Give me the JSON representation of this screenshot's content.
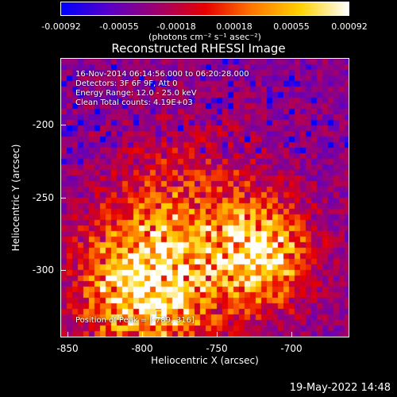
{
  "colorbar": {
    "ticks": [
      "-0.00092",
      "-0.00055",
      "-0.00018",
      "0.00018",
      "0.00055",
      "0.00092"
    ],
    "unit": "(photons cm⁻² s⁻¹ asec⁻²)",
    "range": [
      -0.00092,
      0.00092
    ],
    "colors": [
      "#0000ff",
      "#5a00c8",
      "#a0006e",
      "#e60000",
      "#ff7800",
      "#ffd200",
      "#ffffff"
    ]
  },
  "title": "Reconstructed RHESSI Image",
  "info": {
    "time_range": "16-Nov-2014 06:14:56.000 to 06:20:28.000",
    "detectors": "Detectors: 3F 6F 9F, Att 0",
    "energy": "Energy Range: 12.0 - 25.0 keV",
    "clean": "Clean     Total counts: 4.19E+03",
    "peak": "Position of Peak = [-789,-316]"
  },
  "chart_data": {
    "type": "heatmap",
    "title": "Reconstructed RHESSI Image",
    "xlabel": "Heliocentric X (arcsec)",
    "ylabel": "Heliocentric Y (arcsec)",
    "xlim": [
      -855,
      -663
    ],
    "ylim": [
      -345,
      -161
    ],
    "x_ticks": [
      "-850",
      "-800",
      "-750",
      "-700"
    ],
    "y_ticks": [
      "-200",
      "-250",
      "-300"
    ],
    "x_tick_values": [
      -850,
      -800,
      -750,
      -700
    ],
    "y_tick_values": [
      -200,
      -250,
      -300
    ],
    "peak_position": [
      -789,
      -316
    ],
    "sources": [
      {
        "x": -800,
        "y": -315,
        "sigma": 28,
        "amp": 1.0
      },
      {
        "x": -722,
        "y": -292,
        "sigma": 22,
        "amp": 0.9
      },
      {
        "x": -770,
        "y": -270,
        "sigma": 40,
        "amp": 0.45
      }
    ],
    "grid": false
  },
  "timestamp": "19-May-2022 14:48"
}
